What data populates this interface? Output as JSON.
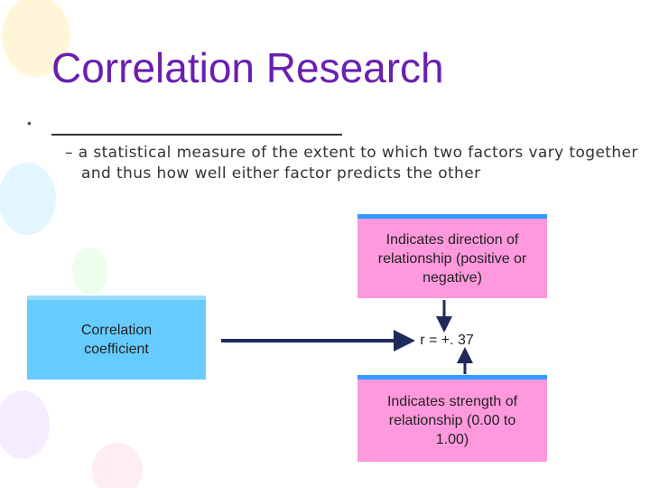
{
  "title": "Correlation Research",
  "bullet": "•",
  "definition": "– a statistical measure of the extent to which two factors vary together and thus how well either factor predicts the other",
  "diagram": {
    "direction_box": "Indicates direction of relationship (positive or negative)",
    "coefficient_box": "Correlation coefficient",
    "value": "r = +. 37",
    "strength_box": "Indicates strength of relationship (0.00 to 1.00)"
  }
}
